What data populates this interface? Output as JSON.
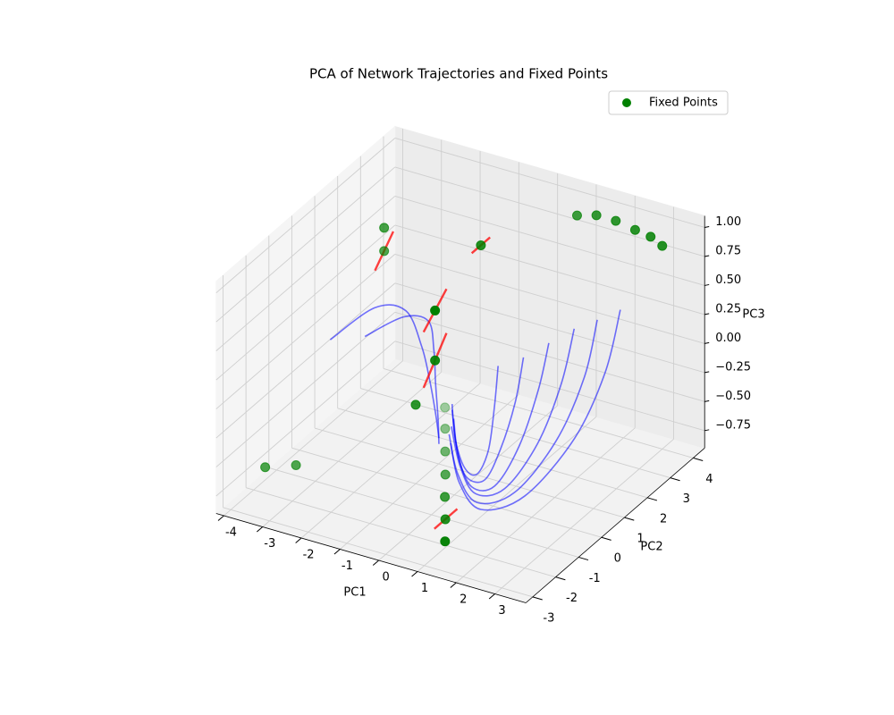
{
  "chart_data": {
    "type": "scatter3d",
    "title": "PCA of Network Trajectories and Fixed Points",
    "xlabel": "PC1",
    "ylabel": "PC2",
    "zlabel": "PC3",
    "xlim": [
      -4.2,
      3.8
    ],
    "ylim": [
      -3.3,
      4.5
    ],
    "zlim": [
      -0.9,
      1.1
    ],
    "xticks": [
      -4,
      -3,
      -2,
      -1,
      0,
      1,
      2,
      3
    ],
    "yticks": [
      -3,
      -2,
      -1,
      0,
      1,
      2,
      3,
      4
    ],
    "zticks": [
      {
        "value": -0.75,
        "label": "−0.75"
      },
      {
        "value": -0.5,
        "label": "−0.50"
      },
      {
        "value": -0.25,
        "label": "−0.25"
      },
      {
        "value": 0,
        "label": "0.00"
      },
      {
        "value": 0.25,
        "label": "0.25"
      },
      {
        "value": 0.5,
        "label": "0.50"
      },
      {
        "value": 0.75,
        "label": "0.75"
      },
      {
        "value": 1.0,
        "label": "1.00"
      }
    ],
    "grid": true,
    "legend": "upper right",
    "fixed_points": {
      "name": "Fixed Points",
      "color": "green",
      "x": [
        0.86,
        0.37,
        -0.14,
        -0.63,
        -1.15,
        -1.66,
        -2.14,
        -1,
        -0.5,
        -0.5,
        -0.5,
        -3,
        -3,
        -3.5,
        -4,
        0.8,
        1.3,
        1.8,
        2.3,
        2.7,
        3
      ],
      "y": [
        -1.86,
        -1.02,
        -0.18,
        0.67,
        1.54,
        2.4,
        3.2,
        0,
        0,
        0,
        2,
        2,
        2,
        -1,
        -1.5,
        4,
        4,
        4,
        4,
        4,
        4
      ],
      "z": [
        -0.9,
        -0.9,
        -0.9,
        -0.9,
        -0.9,
        -0.9,
        -0.9,
        -0.22,
        0.21,
        0.64,
        0.86,
        0.57,
        0.77,
        -0.81,
        -0.79,
        0.9,
        0.95,
        0.95,
        0.92,
        0.9,
        0.85
      ]
    },
    "eigenvectors": {
      "color": "red",
      "segments": [
        {
          "from": [
            -0.5,
            -0.5,
            0.54
          ],
          "to": [
            -0.5,
            0.5,
            0.74
          ]
        },
        {
          "from": [
            -0.5,
            1.6,
            0.86
          ],
          "to": [
            -0.5,
            2.4,
            0.86
          ]
        },
        {
          "from": [
            -3,
            1.6,
            0.47
          ],
          "to": [
            -3,
            2.4,
            0.67
          ]
        },
        {
          "from": [
            -0.5,
            -0.5,
            0.06
          ],
          "to": [
            -0.5,
            0.5,
            0.36
          ]
        },
        {
          "from": [
            0.37,
            -1.5,
            -0.9
          ],
          "to": [
            0.37,
            -0.5,
            -0.9
          ]
        }
      ]
    },
    "trajectories": {
      "color": "blue",
      "lines": [
        {
          "x": [
            0.3,
            0.5,
            0.7,
            0.7,
            0.5,
            0.2,
            0.0
          ],
          "y": [
            1.4,
            0.9,
            0.3,
            -0.2,
            -0.4,
            -0.3,
            -0.1
          ],
          "z": [
            0.0,
            -0.25,
            -0.5,
            -0.62,
            -0.55,
            -0.35,
            -0.1
          ]
        },
        {
          "x": [
            0.6,
            0.8,
            0.9,
            0.9,
            0.6,
            0.3,
            0.0
          ],
          "y": [
            2.0,
            1.3,
            0.5,
            -0.2,
            -0.5,
            -0.4,
            -0.1
          ],
          "z": [
            0.0,
            -0.25,
            -0.5,
            -0.65,
            -0.6,
            -0.4,
            -0.15
          ]
        },
        {
          "x": [
            0.9,
            1.1,
            1.2,
            1.1,
            0.8,
            0.4,
            0.1
          ],
          "y": [
            2.6,
            1.8,
            0.8,
            -0.1,
            -0.6,
            -0.5,
            -0.2
          ],
          "z": [
            0.05,
            -0.2,
            -0.5,
            -0.7,
            -0.65,
            -0.45,
            -0.2
          ]
        },
        {
          "x": [
            1.2,
            1.4,
            1.5,
            1.3,
            0.9,
            0.5,
            0.1
          ],
          "y": [
            3.2,
            2.3,
            1.1,
            0.0,
            -0.6,
            -0.6,
            -0.3
          ],
          "z": [
            0.1,
            -0.2,
            -0.5,
            -0.72,
            -0.7,
            -0.5,
            -0.25
          ]
        },
        {
          "x": [
            1.5,
            1.7,
            1.8,
            1.5,
            1.0,
            0.5,
            0.1
          ],
          "y": [
            3.7,
            2.8,
            1.4,
            0.1,
            -0.7,
            -0.7,
            -0.4
          ],
          "z": [
            0.12,
            -0.2,
            -0.5,
            -0.75,
            -0.75,
            -0.55,
            -0.3
          ]
        },
        {
          "x": [
            1.8,
            2.0,
            2.1,
            1.7,
            1.1,
            0.6,
            0.2
          ],
          "y": [
            4.2,
            3.2,
            1.7,
            0.2,
            -0.7,
            -0.8,
            -0.5
          ],
          "z": [
            0.15,
            -0.2,
            -0.5,
            -0.78,
            -0.8,
            -0.6,
            -0.35
          ]
        },
        {
          "x": [
            -3.8,
            -3.0,
            -2.2,
            -1.5,
            -1.0,
            -0.6,
            -0.4
          ],
          "y": [
            1.0,
            1.6,
            1.6,
            1.1,
            0.6,
            0.2,
            0.0
          ],
          "z": [
            -0.1,
            0.15,
            0.2,
            0.05,
            -0.1,
            -0.3,
            -0.45
          ]
        },
        {
          "x": [
            -3.2,
            -2.5,
            -1.8,
            -1.3,
            -0.9,
            -0.6,
            -0.4
          ],
          "y": [
            1.5,
            2.0,
            1.9,
            1.3,
            0.7,
            0.3,
            0.0
          ],
          "z": [
            -0.1,
            0.05,
            0.1,
            0.0,
            -0.15,
            -0.35,
            -0.5
          ]
        }
      ]
    }
  }
}
